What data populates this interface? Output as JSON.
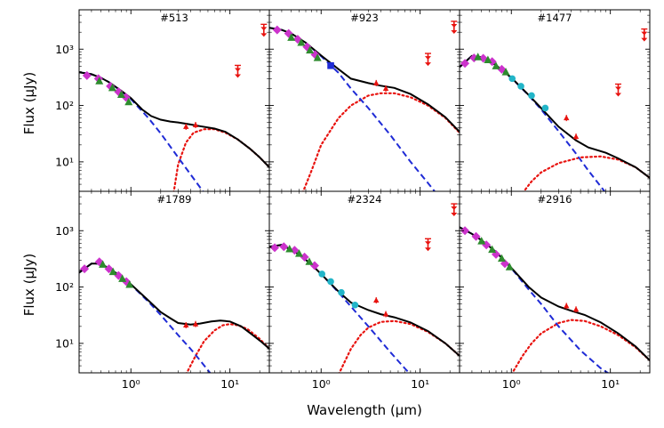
{
  "chart_data": {
    "type": "scatter",
    "xlabel": "Wavelength (µm)",
    "ylabel": "Flux (µJy)",
    "xscale": "log",
    "yscale": "log",
    "xlim": [
      0.3,
      25
    ],
    "ylim": [
      3,
      5000
    ],
    "x_ticks": [
      "10⁰",
      "10¹"
    ],
    "y_ticks": [
      "10¹",
      "10²",
      "10³"
    ],
    "grid": false,
    "colors": {
      "total": "#000000",
      "stellar": "#1f2bd6",
      "dust": "#e8130f",
      "optical": "#cc33cc",
      "nir": "#2e8b2e",
      "cyan": "#22b5c8",
      "irac": "#e8130f",
      "blue": "#1f2bd6"
    },
    "panels": [
      {
        "title": "#513",
        "optical": [
          [
            0.36,
            340
          ],
          [
            0.47,
            300
          ],
          [
            0.62,
            220
          ],
          [
            0.75,
            175
          ],
          [
            0.89,
            140
          ]
        ],
        "nir": [
          [
            0.48,
            270
          ],
          [
            0.65,
            205
          ],
          [
            0.8,
            155
          ],
          [
            0.95,
            115
          ]
        ],
        "cyan": [],
        "blue": [],
        "irac": [
          [
            3.6,
            42
          ],
          [
            4.5,
            45
          ]
        ],
        "upper": [
          [
            12,
            430
          ],
          [
            22,
            2300
          ]
        ],
        "stellar": [
          [
            0.3,
            390
          ],
          [
            0.4,
            360
          ],
          [
            0.5,
            310
          ],
          [
            0.6,
            260
          ],
          [
            0.8,
            180
          ],
          [
            1.0,
            130
          ],
          [
            1.5,
            60
          ],
          [
            2.0,
            32
          ],
          [
            3.0,
            12
          ],
          [
            4.0,
            6
          ],
          [
            5.5,
            2.8
          ]
        ],
        "dust": [
          [
            2.7,
            2.8
          ],
          [
            3.0,
            9
          ],
          [
            3.6,
            22
          ],
          [
            4.3,
            33
          ],
          [
            5.5,
            38
          ],
          [
            7,
            38
          ],
          [
            9,
            33
          ],
          [
            12,
            25
          ],
          [
            16,
            17
          ],
          [
            20,
            12
          ],
          [
            25,
            8
          ]
        ],
        "total": [
          [
            0.3,
            390
          ],
          [
            0.4,
            360
          ],
          [
            0.5,
            310
          ],
          [
            0.6,
            260
          ],
          [
            0.8,
            182
          ],
          [
            1.0,
            135
          ],
          [
            1.3,
            85
          ],
          [
            1.6,
            65
          ],
          [
            2.0,
            56
          ],
          [
            2.5,
            52
          ],
          [
            3.0,
            50
          ],
          [
            4.0,
            46
          ],
          [
            5.0,
            43
          ],
          [
            7,
            39
          ],
          [
            9,
            34
          ],
          [
            12,
            25
          ],
          [
            16,
            17
          ],
          [
            20,
            12
          ],
          [
            25,
            8
          ]
        ]
      },
      {
        "title": "#923",
        "optical": [
          [
            0.36,
            2200
          ],
          [
            0.47,
            1900
          ],
          [
            0.58,
            1500
          ],
          [
            0.72,
            1100
          ],
          [
            0.87,
            800
          ]
        ],
        "nir": [
          [
            0.5,
            1600
          ],
          [
            0.63,
            1300
          ],
          [
            0.77,
            950
          ],
          [
            0.92,
            700
          ]
        ],
        "cyan": [],
        "blue": [
          [
            1.25,
            510
          ]
        ],
        "irac": [
          [
            3.6,
            250
          ],
          [
            4.5,
            200
          ]
        ],
        "upper": [
          [
            12,
            700
          ],
          [
            22,
            2600
          ]
        ],
        "stellar": [
          [
            0.3,
            2400
          ],
          [
            0.4,
            2200
          ],
          [
            0.5,
            1900
          ],
          [
            0.7,
            1300
          ],
          [
            1.0,
            750
          ],
          [
            1.5,
            380
          ],
          [
            2.0,
            200
          ],
          [
            3.0,
            90
          ],
          [
            5.0,
            30
          ],
          [
            8.0,
            10
          ],
          [
            12,
            4.2
          ],
          [
            14,
            3
          ]
        ],
        "dust": [
          [
            0.65,
            2.8
          ],
          [
            0.8,
            7
          ],
          [
            1.0,
            20
          ],
          [
            1.5,
            60
          ],
          [
            2.0,
            100
          ],
          [
            3.0,
            150
          ],
          [
            4.0,
            165
          ],
          [
            5.5,
            165
          ],
          [
            8,
            140
          ],
          [
            12,
            100
          ],
          [
            18,
            60
          ],
          [
            25,
            33
          ]
        ],
        "total": [
          [
            0.3,
            2400
          ],
          [
            0.4,
            2200
          ],
          [
            0.5,
            1900
          ],
          [
            0.7,
            1300
          ],
          [
            1.0,
            770
          ],
          [
            1.5,
            440
          ],
          [
            2.0,
            300
          ],
          [
            3.0,
            250
          ],
          [
            4.0,
            225
          ],
          [
            5.5,
            205
          ],
          [
            8,
            160
          ],
          [
            12,
            105
          ],
          [
            18,
            62
          ],
          [
            25,
            34
          ]
        ]
      },
      {
        "title": "#1477",
        "optical": [
          [
            0.34,
            560
          ],
          [
            0.42,
            700
          ],
          [
            0.52,
            690
          ],
          [
            0.64,
            600
          ],
          [
            0.8,
            440
          ]
        ],
        "nir": [
          [
            0.46,
            720
          ],
          [
            0.58,
            640
          ],
          [
            0.7,
            500
          ],
          [
            0.88,
            390
          ]
        ],
        "cyan": [
          [
            1.02,
            300
          ],
          [
            1.25,
            220
          ],
          [
            1.6,
            150
          ],
          [
            2.2,
            90
          ]
        ],
        "blue": [],
        "irac": [
          [
            3.6,
            60
          ],
          [
            4.5,
            28
          ]
        ],
        "upper": [
          [
            12,
            200
          ],
          [
            22,
            1900
          ]
        ],
        "stellar": [
          [
            0.3,
            480
          ],
          [
            0.4,
            760
          ],
          [
            0.5,
            720
          ],
          [
            0.7,
            520
          ],
          [
            1.0,
            310
          ],
          [
            1.5,
            150
          ],
          [
            2.0,
            85
          ],
          [
            3.0,
            35
          ],
          [
            4.5,
            14
          ],
          [
            6.0,
            7
          ],
          [
            9.0,
            2.8
          ]
        ],
        "dust": [
          [
            1.3,
            2.8
          ],
          [
            1.6,
            4.5
          ],
          [
            2.0,
            6.5
          ],
          [
            3.0,
            9.5
          ],
          [
            5.0,
            12
          ],
          [
            8,
            12.5
          ],
          [
            12,
            11
          ],
          [
            18,
            8
          ],
          [
            25,
            5.2
          ]
        ],
        "total": [
          [
            0.3,
            480
          ],
          [
            0.4,
            760
          ],
          [
            0.5,
            720
          ],
          [
            0.7,
            520
          ],
          [
            1.0,
            312
          ],
          [
            1.5,
            153
          ],
          [
            2.0,
            90
          ],
          [
            3.0,
            42
          ],
          [
            4.5,
            24
          ],
          [
            6.0,
            18
          ],
          [
            9.0,
            14.5
          ],
          [
            12,
            11.5
          ],
          [
            18,
            8
          ],
          [
            25,
            5.2
          ]
        ]
      },
      {
        "title": "#1789",
        "optical": [
          [
            0.34,
            210
          ],
          [
            0.48,
            280
          ],
          [
            0.6,
            210
          ],
          [
            0.75,
            160
          ],
          [
            0.9,
            125
          ]
        ],
        "nir": [
          [
            0.52,
            250
          ],
          [
            0.66,
            185
          ],
          [
            0.82,
            140
          ],
          [
            0.97,
            110
          ]
        ],
        "cyan": [],
        "blue": [],
        "irac": [
          [
            3.6,
            21
          ],
          [
            4.5,
            22
          ]
        ],
        "upper": [],
        "stellar": [
          [
            0.3,
            180
          ],
          [
            0.4,
            260
          ],
          [
            0.5,
            260
          ],
          [
            0.7,
            180
          ],
          [
            1.0,
            110
          ],
          [
            1.5,
            55
          ],
          [
            2.0,
            32
          ],
          [
            3.0,
            14
          ],
          [
            4.0,
            8
          ],
          [
            5.0,
            5
          ],
          [
            6.5,
            2.8
          ]
        ],
        "dust": [
          [
            3.6,
            2.8
          ],
          [
            4.5,
            6
          ],
          [
            5.5,
            11
          ],
          [
            7,
            17
          ],
          [
            8.5,
            21
          ],
          [
            10,
            22
          ],
          [
            12,
            21
          ],
          [
            15,
            18
          ],
          [
            20,
            12
          ],
          [
            25,
            8
          ]
        ],
        "total": [
          [
            0.3,
            180
          ],
          [
            0.4,
            260
          ],
          [
            0.5,
            260
          ],
          [
            0.7,
            180
          ],
          [
            1.0,
            112
          ],
          [
            1.5,
            58
          ],
          [
            2.0,
            36
          ],
          [
            2.5,
            28
          ],
          [
            3.0,
            23
          ],
          [
            4.0,
            21.5
          ],
          [
            5.0,
            22.5
          ],
          [
            6.5,
            24.5
          ],
          [
            8.0,
            25.5
          ],
          [
            10,
            24.5
          ],
          [
            13,
            20
          ],
          [
            17,
            14
          ],
          [
            21,
            10.5
          ],
          [
            25,
            8
          ]
        ]
      },
      {
        "title": "#2324",
        "optical": [
          [
            0.34,
            500
          ],
          [
            0.42,
            520
          ],
          [
            0.54,
            450
          ],
          [
            0.68,
            340
          ],
          [
            0.86,
            240
          ]
        ],
        "nir": [
          [
            0.48,
            470
          ],
          [
            0.6,
            390
          ],
          [
            0.76,
            280
          ]
        ],
        "cyan": [
          [
            1.02,
            170
          ],
          [
            1.25,
            125
          ],
          [
            1.6,
            80
          ],
          [
            2.2,
            48
          ]
        ],
        "blue": [],
        "irac": [
          [
            3.6,
            58
          ],
          [
            4.5,
            33
          ]
        ],
        "upper": [
          [
            12,
            600
          ],
          [
            22,
            2500
          ]
        ],
        "stellar": [
          [
            0.3,
            520
          ],
          [
            0.4,
            560
          ],
          [
            0.6,
            380
          ],
          [
            0.8,
            250
          ],
          [
            1.0,
            170
          ],
          [
            1.5,
            80
          ],
          [
            2.0,
            45
          ],
          [
            3.0,
            20
          ],
          [
            5.0,
            7
          ],
          [
            7.0,
            3.6
          ],
          [
            8.0,
            2.8
          ]
        ],
        "dust": [
          [
            1.5,
            2.8
          ],
          [
            2.0,
            8
          ],
          [
            2.5,
            14
          ],
          [
            3.0,
            19
          ],
          [
            4.0,
            24
          ],
          [
            5.5,
            25
          ],
          [
            8,
            22
          ],
          [
            12,
            16
          ],
          [
            18,
            10
          ],
          [
            25,
            6
          ]
        ],
        "total": [
          [
            0.3,
            520
          ],
          [
            0.4,
            560
          ],
          [
            0.6,
            380
          ],
          [
            0.8,
            250
          ],
          [
            1.0,
            170
          ],
          [
            1.5,
            83
          ],
          [
            2.0,
            53
          ],
          [
            3.0,
            39
          ],
          [
            4.0,
            33
          ],
          [
            5.5,
            29
          ],
          [
            8,
            23.5
          ],
          [
            12,
            16.5
          ],
          [
            18,
            10
          ],
          [
            25,
            6
          ]
        ]
      },
      {
        "title": "#2916",
        "optical": [
          [
            0.34,
            1000
          ],
          [
            0.44,
            790
          ],
          [
            0.56,
            560
          ],
          [
            0.7,
            380
          ],
          [
            0.86,
            260
          ]
        ],
        "nir": [
          [
            0.5,
            650
          ],
          [
            0.64,
            460
          ],
          [
            0.8,
            320
          ],
          [
            0.96,
            225
          ]
        ],
        "cyan": [],
        "blue": [],
        "irac": [
          [
            3.6,
            46
          ],
          [
            4.5,
            40
          ]
        ],
        "upper": [],
        "stellar": [
          [
            0.3,
            1150
          ],
          [
            0.4,
            880
          ],
          [
            0.5,
            680
          ],
          [
            0.7,
            420
          ],
          [
            1.0,
            215
          ],
          [
            1.5,
            90
          ],
          [
            2.0,
            50
          ],
          [
            3.0,
            20
          ],
          [
            5.0,
            7.5
          ],
          [
            8.0,
            3.6
          ],
          [
            10,
            2.8
          ]
        ],
        "dust": [
          [
            1.0,
            2.8
          ],
          [
            1.3,
            6
          ],
          [
            1.6,
            10
          ],
          [
            2.0,
            15
          ],
          [
            3.0,
            23
          ],
          [
            4.0,
            26
          ],
          [
            5.5,
            25
          ],
          [
            8,
            20
          ],
          [
            12,
            14
          ],
          [
            18,
            8.5
          ],
          [
            25,
            5
          ]
        ],
        "total": [
          [
            0.3,
            1150
          ],
          [
            0.4,
            880
          ],
          [
            0.5,
            680
          ],
          [
            0.7,
            420
          ],
          [
            1.0,
            218
          ],
          [
            1.5,
            100
          ],
          [
            2.0,
            65
          ],
          [
            3.0,
            45
          ],
          [
            4.0,
            38
          ],
          [
            5.5,
            32
          ],
          [
            8,
            23.5
          ],
          [
            12,
            15
          ],
          [
            18,
            8.8
          ],
          [
            25,
            5
          ]
        ]
      }
    ]
  }
}
